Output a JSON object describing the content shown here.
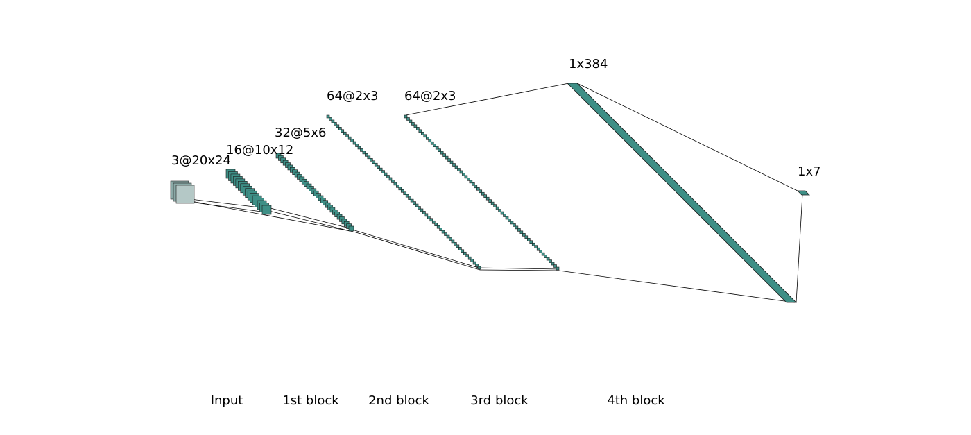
{
  "diagram": {
    "layers": [
      {
        "id": "input",
        "label": "3@20x24"
      },
      {
        "id": "conv1",
        "label": "16@10x12"
      },
      {
        "id": "conv2",
        "label": "32@5x6"
      },
      {
        "id": "conv3",
        "label": "64@2x3"
      },
      {
        "id": "conv4",
        "label": "64@2x3"
      },
      {
        "id": "fc1",
        "label": "1x384"
      },
      {
        "id": "output",
        "label": "1x7"
      }
    ],
    "blocks": [
      {
        "id": "input",
        "label": "Input"
      },
      {
        "id": "block1",
        "label": "1st block"
      },
      {
        "id": "block2",
        "label": "2nd block"
      },
      {
        "id": "block3",
        "label": "3rd block"
      },
      {
        "id": "block4",
        "label": "4th block"
      }
    ],
    "colors": {
      "input_fill": "#8aa9a6",
      "input_fill_light": "#b4c8c6",
      "map_fill": "#3e8f86",
      "map_fill_dark": "#2f7a72",
      "stroke": "#1a1a1a",
      "connector": "#000000"
    }
  }
}
